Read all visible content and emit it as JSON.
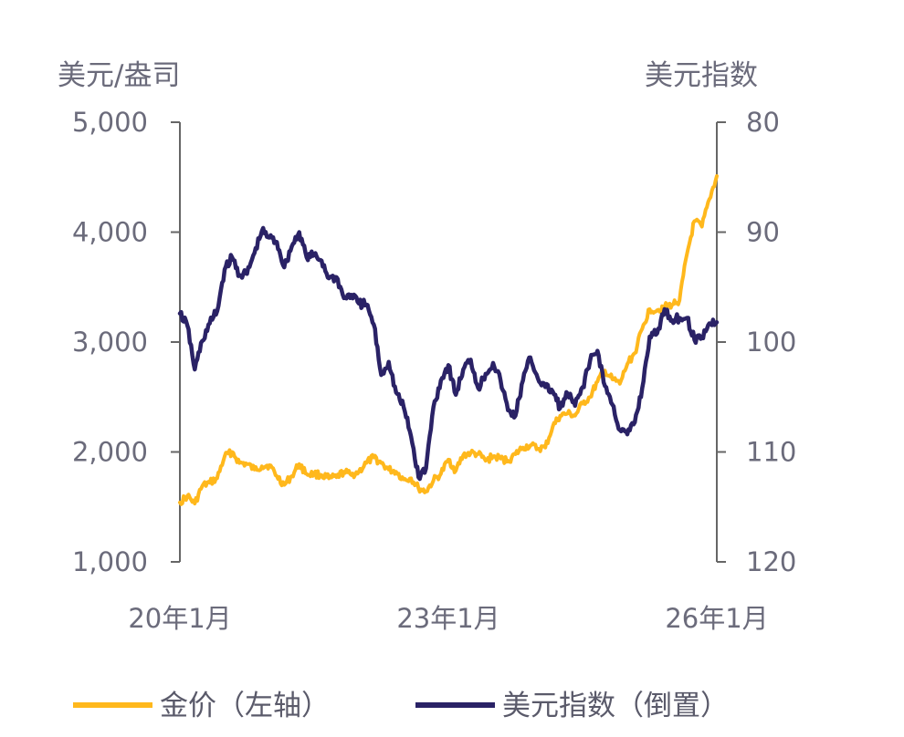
{
  "chart_data": {
    "type": "line",
    "title": "",
    "colors": {
      "gold": "#FFB81C",
      "usd": "#2A2266",
      "axis": "#666666",
      "text": "#6b6b7b"
    },
    "left_axis": {
      "title": "美元/盎司",
      "ylim": [
        1000,
        5000
      ],
      "ticks": [
        "1,000",
        "2,000",
        "3,000",
        "4,000",
        "5,000"
      ]
    },
    "right_axis": {
      "title": "美元指数",
      "ylim": [
        80,
        120
      ],
      "inverted": true,
      "ticks": [
        "80",
        "90",
        "100",
        "110",
        "120"
      ]
    },
    "x_axis": {
      "range": [
        "2020-01",
        "2026-01"
      ],
      "tick_labels": [
        "20年1月",
        "23年1月",
        "26年1月"
      ],
      "tick_positions": [
        "2020-01",
        "2023-01",
        "2026-01"
      ]
    },
    "legend": {
      "placement": "bottom"
    },
    "series": [
      {
        "name": "金价（左轴）",
        "axis": "left",
        "color": "#FFB81C",
        "x": [
          "2020-01",
          "2020-02",
          "2020-03",
          "2020-04",
          "2020-05",
          "2020-06",
          "2020-07",
          "2020-08",
          "2020-09",
          "2020-10",
          "2020-11",
          "2020-12",
          "2021-01",
          "2021-02",
          "2021-03",
          "2021-04",
          "2021-05",
          "2021-06",
          "2021-07",
          "2021-08",
          "2021-09",
          "2021-10",
          "2021-11",
          "2021-12",
          "2022-01",
          "2022-02",
          "2022-03",
          "2022-04",
          "2022-05",
          "2022-06",
          "2022-07",
          "2022-08",
          "2022-09",
          "2022-10",
          "2022-11",
          "2022-12",
          "2023-01",
          "2023-02",
          "2023-03",
          "2023-04",
          "2023-05",
          "2023-06",
          "2023-07",
          "2023-08",
          "2023-09",
          "2023-10",
          "2023-11",
          "2023-12",
          "2024-01",
          "2024-02",
          "2024-03",
          "2024-04",
          "2024-05",
          "2024-06",
          "2024-07",
          "2024-08",
          "2024-09",
          "2024-10",
          "2024-11",
          "2024-12",
          "2025-01",
          "2025-02",
          "2025-03",
          "2025-04",
          "2025-05",
          "2025-06",
          "2025-07",
          "2025-08",
          "2025-09",
          "2025-10",
          "2025-11",
          "2025-12",
          "2026-01"
        ],
        "values": [
          1540,
          1600,
          1530,
          1690,
          1720,
          1760,
          1960,
          2000,
          1900,
          1890,
          1840,
          1870,
          1880,
          1780,
          1700,
          1780,
          1890,
          1800,
          1800,
          1790,
          1760,
          1770,
          1820,
          1790,
          1820,
          1900,
          1950,
          1900,
          1840,
          1820,
          1750,
          1760,
          1670,
          1640,
          1740,
          1800,
          1930,
          1830,
          1970,
          1990,
          1980,
          1920,
          1960,
          1940,
          1920,
          1980,
          2040,
          2060,
          2030,
          2040,
          2230,
          2330,
          2350,
          2330,
          2440,
          2500,
          2640,
          2740,
          2660,
          2620,
          2800,
          2900,
          3120,
          3300,
          3290,
          3320,
          3340,
          3380,
          3800,
          4100,
          4050,
          4300,
          4510
        ]
      },
      {
        "name": "美元指数（倒置）",
        "axis": "right",
        "color": "#2A2266",
        "x": [
          "2020-01",
          "2020-02",
          "2020-03",
          "2020-04",
          "2020-05",
          "2020-06",
          "2020-07",
          "2020-08",
          "2020-09",
          "2020-10",
          "2020-11",
          "2020-12",
          "2021-01",
          "2021-02",
          "2021-03",
          "2021-04",
          "2021-05",
          "2021-06",
          "2021-07",
          "2021-08",
          "2021-09",
          "2021-10",
          "2021-11",
          "2021-12",
          "2022-01",
          "2022-02",
          "2022-03",
          "2022-04",
          "2022-05",
          "2022-06",
          "2022-07",
          "2022-08",
          "2022-09",
          "2022-10",
          "2022-11",
          "2022-12",
          "2023-01",
          "2023-02",
          "2023-03",
          "2023-04",
          "2023-05",
          "2023-06",
          "2023-07",
          "2023-08",
          "2023-09",
          "2023-10",
          "2023-11",
          "2023-12",
          "2024-01",
          "2024-02",
          "2024-03",
          "2024-04",
          "2024-05",
          "2024-06",
          "2024-07",
          "2024-08",
          "2024-09",
          "2024-10",
          "2024-11",
          "2024-12",
          "2025-01",
          "2025-02",
          "2025-03",
          "2025-04",
          "2025-05",
          "2025-06",
          "2025-07",
          "2025-08",
          "2025-09",
          "2025-10",
          "2025-11",
          "2025-12",
          "2026-01"
        ],
        "values": [
          97.4,
          98.5,
          102.5,
          99.9,
          98.3,
          97.2,
          93.4,
          92.3,
          93.9,
          93.8,
          91.9,
          89.9,
          90.5,
          90.9,
          93.2,
          91.3,
          90.0,
          92.3,
          92.1,
          92.6,
          94.2,
          94.1,
          96.0,
          95.7,
          96.5,
          96.6,
          98.4,
          103.0,
          101.8,
          104.6,
          105.9,
          108.6,
          112.3,
          111.5,
          105.9,
          103.5,
          102.1,
          104.8,
          102.5,
          101.6,
          104.2,
          102.9,
          101.9,
          103.5,
          106.2,
          106.7,
          103.5,
          101.4,
          103.3,
          104.1,
          104.5,
          106.0,
          104.7,
          105.8,
          104.1,
          101.7,
          100.8,
          104.0,
          105.7,
          108.0,
          108.4,
          107.3,
          104.2,
          99.5,
          99.2,
          97.0,
          98.0,
          97.8,
          97.8,
          99.8,
          99.5,
          98.3,
          98.2
        ]
      }
    ]
  }
}
